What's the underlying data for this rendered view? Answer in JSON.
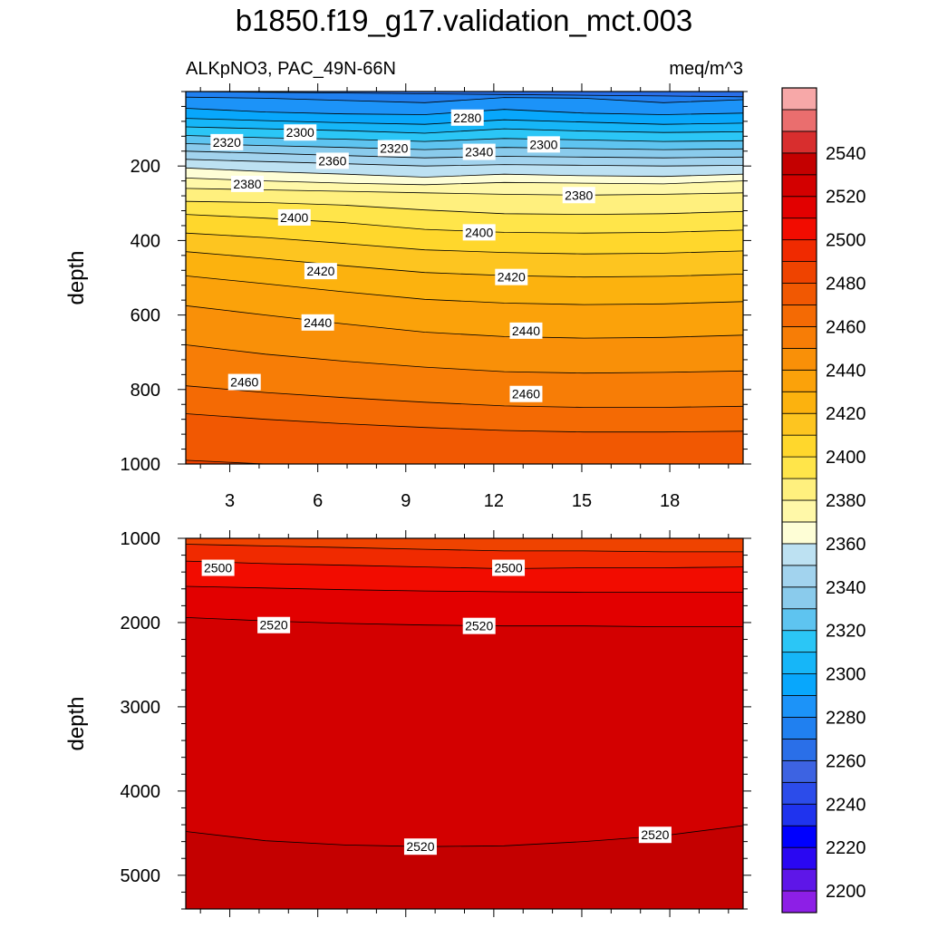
{
  "title": "b1850.f19_g17.validation_mct.003",
  "chart_data": {
    "type": "contour",
    "variable_label": "ALKpNO3, PAC_49N-66N",
    "units": "meq/m^3",
    "x_ticks": [
      3,
      6,
      9,
      12,
      15,
      18
    ],
    "xlim": [
      1.5,
      20.5
    ],
    "colorbar": {
      "levels": [
        2190,
        2200,
        2210,
        2220,
        2230,
        2240,
        2250,
        2260,
        2270,
        2280,
        2290,
        2300,
        2310,
        2320,
        2330,
        2340,
        2350,
        2360,
        2370,
        2380,
        2390,
        2400,
        2410,
        2420,
        2430,
        2440,
        2450,
        2460,
        2470,
        2480,
        2490,
        2500,
        2510,
        2520,
        2530,
        2540,
        2550,
        2560
      ],
      "labels": [
        "2200",
        "2220",
        "2240",
        "2260",
        "2280",
        "2300",
        "2320",
        "2340",
        "2360",
        "2380",
        "2400",
        "2420",
        "2440",
        "2460",
        "2480",
        "2500",
        "2520",
        "2540"
      ],
      "colors": [
        "#8d1fe6",
        "#5e16e8",
        "#2a07f2",
        "#0000fe",
        "#1f33ee",
        "#2c4cea",
        "#3d63e2",
        "#2a6fe8",
        "#2080f0",
        "#1c93f8",
        "#08a7fc",
        "#16b6f8",
        "#2bc6f6",
        "#5ec4f0",
        "#8acbec",
        "#a2d3ee",
        "#bde1f2",
        "#fefed6",
        "#fff8a8",
        "#fff07e",
        "#ffe54a",
        "#ffd72c",
        "#fdc520",
        "#fcb20e",
        "#fba20a",
        "#f99008",
        "#f77d06",
        "#f46a04",
        "#f15802",
        "#ef4300",
        "#f02a00",
        "#f20c00",
        "#e20000",
        "#d30000",
        "#c40000",
        "#d82e2e",
        "#ea6e6e",
        "#f7a8a8"
      ]
    },
    "panels": [
      {
        "ylabel": "depth",
        "ylim": [
          1000,
          0
        ],
        "y_ticks": [
          200,
          400,
          600,
          800,
          1000
        ],
        "contour_values": [
          2270,
          2280,
          2290,
          2300,
          2310,
          2320,
          2330,
          2340,
          2350,
          2360,
          2370,
          2380,
          2390,
          2400,
          2410,
          2420,
          2430,
          2440,
          2450,
          2460,
          2470,
          2480
        ],
        "contour_depths": [
          [
            0,
            2,
            4,
            6,
            8,
            10,
            12,
            14
          ],
          [
            15,
            18,
            24,
            30,
            16,
            18,
            30,
            22
          ],
          [
            45,
            55,
            60,
            62,
            48,
            58,
            62,
            58
          ],
          [
            72,
            78,
            84,
            88,
            76,
            82,
            88,
            85
          ],
          [
            95,
            100,
            105,
            112,
            100,
            106,
            110,
            108
          ],
          [
            118,
            124,
            128,
            134,
            126,
            130,
            134,
            132
          ],
          [
            140,
            145,
            150,
            156,
            150,
            153,
            156,
            154
          ],
          [
            160,
            166,
            172,
            178,
            174,
            176,
            178,
            176
          ],
          [
            182,
            188,
            194,
            200,
            196,
            198,
            200,
            198
          ],
          [
            205,
            215,
            222,
            230,
            222,
            226,
            228,
            222
          ],
          [
            232,
            240,
            246,
            250,
            244,
            246,
            248,
            240
          ],
          [
            260,
            264,
            268,
            272,
            276,
            278,
            276,
            272
          ],
          [
            295,
            298,
            305,
            318,
            328,
            330,
            328,
            322
          ],
          [
            330,
            340,
            352,
            370,
            378,
            380,
            378,
            372
          ],
          [
            380,
            392,
            408,
            425,
            432,
            436,
            434,
            428
          ],
          [
            430,
            448,
            468,
            486,
            494,
            498,
            496,
            490
          ],
          [
            495,
            516,
            538,
            558,
            568,
            572,
            570,
            564
          ],
          [
            575,
            600,
            624,
            646,
            658,
            662,
            660,
            654
          ],
          [
            680,
            705,
            724,
            740,
            752,
            756,
            754,
            750
          ],
          [
            790,
            808,
            822,
            834,
            844,
            848,
            848,
            845
          ],
          [
            865,
            880,
            892,
            902,
            910,
            914,
            914,
            912
          ],
          [
            990,
            1000,
            1005,
            1010,
            1010,
            1010,
            1010,
            1010
          ]
        ],
        "top_value": 2265,
        "contour_labels": [
          {
            "text": "2280",
            "x": 11.1,
            "y": 70
          },
          {
            "text": "2300",
            "x": 5.4,
            "y": 110
          },
          {
            "text": "2300",
            "x": 13.7,
            "y": 142
          },
          {
            "text": "2320",
            "x": 2.9,
            "y": 136
          },
          {
            "text": "2320",
            "x": 8.6,
            "y": 152
          },
          {
            "text": "2340",
            "x": 11.5,
            "y": 162
          },
          {
            "text": "2360",
            "x": 6.5,
            "y": 186
          },
          {
            "text": "2380",
            "x": 3.6,
            "y": 248
          },
          {
            "text": "2380",
            "x": 14.9,
            "y": 278
          },
          {
            "text": "2400",
            "x": 5.2,
            "y": 338
          },
          {
            "text": "2400",
            "x": 11.5,
            "y": 378
          },
          {
            "text": "2420",
            "x": 6.1,
            "y": 482
          },
          {
            "text": "2420",
            "x": 12.6,
            "y": 498
          },
          {
            "text": "2440",
            "x": 6.0,
            "y": 620
          },
          {
            "text": "2440",
            "x": 13.1,
            "y": 642
          },
          {
            "text": "2460",
            "x": 3.5,
            "y": 780
          },
          {
            "text": "2460",
            "x": 13.1,
            "y": 812
          }
        ]
      },
      {
        "ylabel": "depth",
        "ylim": [
          5400,
          1000
        ],
        "y_ticks": [
          1000,
          2000,
          3000,
          4000,
          5000
        ],
        "contour_values": [
          2490,
          2500,
          2510,
          2520,
          2530
        ],
        "contour_depths": [
          [
            1070,
            1090,
            1110,
            1130,
            1150,
            1150,
            1160,
            1160
          ],
          [
            1270,
            1300,
            1320,
            1340,
            1360,
            1350,
            1350,
            1340
          ],
          [
            1570,
            1590,
            1610,
            1625,
            1635,
            1640,
            1640,
            1640
          ],
          [
            1940,
            1980,
            2010,
            2030,
            2040,
            2040,
            2050,
            2050
          ],
          [
            4480,
            4590,
            4640,
            4660,
            4650,
            4600,
            4530,
            4410
          ]
        ],
        "top_value": 2485,
        "contour_labels": [
          {
            "text": "2500",
            "x": 2.6,
            "y": 1350
          },
          {
            "text": "2500",
            "x": 12.5,
            "y": 1350
          },
          {
            "text": "2520",
            "x": 4.5,
            "y": 2030
          },
          {
            "text": "2520",
            "x": 11.5,
            "y": 2040
          },
          {
            "text": "2520",
            "x": 9.5,
            "y": 4660
          },
          {
            "text": "2520",
            "x": 17.5,
            "y": 4520
          }
        ]
      }
    ]
  }
}
